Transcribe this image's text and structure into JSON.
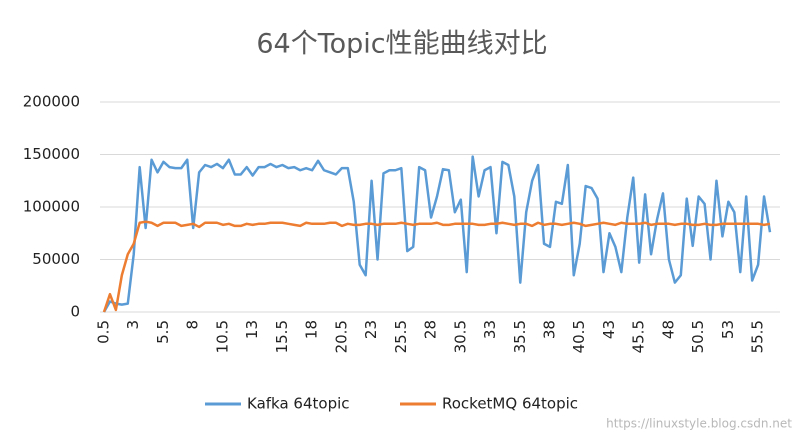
{
  "chart_data": {
    "type": "line",
    "title": "64个Topic性能曲线对比",
    "watermark": "https://linuxstyle.blog.csdn.net",
    "x": [
      0.5,
      1,
      1.5,
      2,
      2.5,
      3,
      3.5,
      4,
      4.5,
      5,
      5.5,
      6,
      6.5,
      7,
      7.5,
      8,
      8.5,
      9,
      9.5,
      10,
      10.5,
      11,
      11.5,
      12,
      12.5,
      13,
      13.5,
      14,
      14.5,
      15,
      15.5,
      16,
      16.5,
      17,
      17.5,
      18,
      18.5,
      19,
      19.5,
      20,
      20.5,
      21,
      21.5,
      22,
      22.5,
      23,
      23.5,
      24,
      24.5,
      25,
      25.5,
      26,
      26.5,
      27,
      27.5,
      28,
      28.5,
      29,
      29.5,
      30,
      30.5,
      31,
      31.5,
      32,
      32.5,
      33,
      33.5,
      34,
      34.5,
      35,
      35.5,
      36,
      36.5,
      37,
      37.5,
      38,
      38.5,
      39,
      39.5,
      40,
      40.5,
      41,
      41.5,
      42,
      42.5,
      43,
      43.5,
      44,
      44.5,
      45,
      45.5,
      46,
      46.5,
      47,
      47.5,
      48,
      48.5,
      49,
      49.5,
      50,
      50.5,
      51,
      51.5,
      52,
      52.5,
      53,
      53.5,
      54,
      54.5,
      55,
      55.5,
      56,
      56.5
    ],
    "xlim": [
      0.5,
      56.5
    ],
    "xticks": [
      0.5,
      3,
      5.5,
      8,
      10.5,
      13,
      15.5,
      18,
      20.5,
      23,
      25.5,
      28,
      30.5,
      33,
      35.5,
      38,
      40.5,
      43,
      45.5,
      48,
      50.5,
      53,
      55.5
    ],
    "ylim": [
      0,
      200000
    ],
    "yticks": [
      0,
      50000,
      100000,
      150000,
      200000
    ],
    "grid": true,
    "legend": "bottom",
    "series": [
      {
        "name": "Kafka 64topic",
        "color": "#5b9bd5",
        "values": [
          0,
          10000,
          8000,
          7000,
          8000,
          55000,
          138000,
          80000,
          145000,
          133000,
          143000,
          138000,
          137000,
          137000,
          145000,
          80000,
          133000,
          140000,
          138000,
          141000,
          137000,
          145000,
          131000,
          131000,
          138000,
          130000,
          138000,
          138000,
          141000,
          138000,
          140000,
          137000,
          138000,
          135000,
          137000,
          135000,
          144000,
          135000,
          133000,
          131000,
          137000,
          137000,
          105000,
          45000,
          35000,
          125000,
          50000,
          132000,
          135000,
          135000,
          137000,
          58000,
          62000,
          138000,
          135000,
          90000,
          110000,
          136000,
          135000,
          95000,
          107000,
          38000,
          148000,
          110000,
          135000,
          138000,
          75000,
          143000,
          140000,
          110000,
          28000,
          95000,
          125000,
          140000,
          65000,
          62000,
          105000,
          103000,
          140000,
          35000,
          65000,
          120000,
          118000,
          108000,
          38000,
          75000,
          62000,
          38000,
          90000,
          128000,
          47000,
          112000,
          55000,
          88000,
          113000,
          50000,
          28000,
          35000,
          108000,
          63000,
          110000,
          103000,
          50000,
          125000,
          72000,
          105000,
          95000,
          38000,
          110000,
          30000,
          45000,
          110000,
          76000
        ]
      },
      {
        "name": "RocketMQ 64topic",
        "color": "#ed7d31",
        "values": [
          0,
          17000,
          2000,
          35000,
          55000,
          65000,
          85000,
          86000,
          85000,
          82000,
          85000,
          85000,
          85000,
          82000,
          83000,
          84000,
          81000,
          85000,
          85000,
          85000,
          83000,
          84000,
          82000,
          82000,
          84000,
          83000,
          84000,
          84000,
          85000,
          85000,
          85000,
          84000,
          83000,
          82000,
          85000,
          84000,
          84000,
          84000,
          85000,
          85000,
          82000,
          84000,
          83000,
          83000,
          84000,
          84000,
          83000,
          84000,
          84000,
          84000,
          85000,
          84000,
          83000,
          84000,
          84000,
          84000,
          85000,
          83000,
          83000,
          84000,
          84000,
          84000,
          84000,
          83000,
          83000,
          84000,
          84000,
          85000,
          84000,
          83000,
          84000,
          84000,
          82000,
          85000,
          83000,
          84000,
          84000,
          83000,
          84000,
          85000,
          84000,
          82000,
          83000,
          84000,
          85000,
          84000,
          83000,
          85000,
          84000,
          84000,
          84000,
          85000,
          83000,
          84000,
          84000,
          84000,
          83000,
          84000,
          84000,
          83000,
          83000,
          84000,
          83000,
          83000,
          84000,
          84000,
          84000,
          84000,
          84000,
          84000,
          84000,
          83000,
          84000
        ]
      }
    ]
  }
}
